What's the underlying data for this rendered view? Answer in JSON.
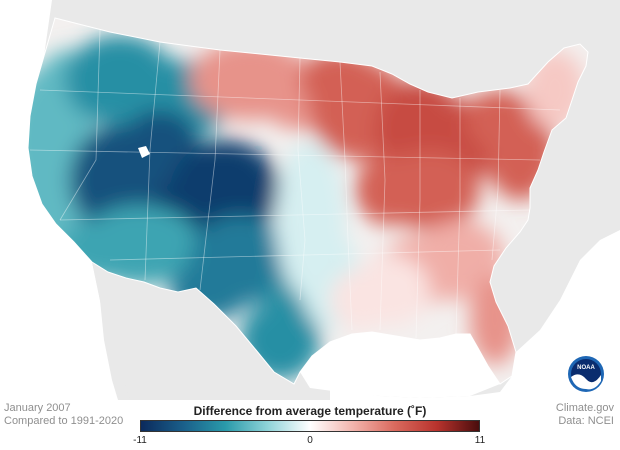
{
  "footer": {
    "period": "January 2007",
    "baseline": "Compared to 1991-2020",
    "credit": "Climate.gov",
    "source": "Data: NCEI"
  },
  "legend": {
    "title": "Difference from average temperature (˚F)",
    "min_label": "-11",
    "mid_label": "0",
    "max_label": "11",
    "min_value": -11,
    "max_value": 11,
    "colors": [
      "#0b2a5c",
      "#1a5f8a",
      "#2a9aaa",
      "#8fd3d8",
      "#ffffff",
      "#f2b5ae",
      "#d96a5e",
      "#b8332d",
      "#4a0d0d"
    ]
  },
  "logo": {
    "text": "NOAA",
    "ring_color": "#1e67b5",
    "sky_color": "#0a2c6e",
    "wave_color": "#ffffff"
  },
  "map": {
    "ocean_color": "#ffffff",
    "land_color": "#e9e9e9",
    "region_anomalies": {
      "pacific_coast": -4,
      "northern_rockies": -6,
      "great_basin": -9,
      "central_rockies": -10,
      "southwest": -5,
      "southern_plains": -7,
      "texas_coast": -6,
      "central_plains": -1,
      "northern_plains": 4,
      "upper_midwest": 6,
      "great_lakes": 7,
      "ohio_valley": 6,
      "northeast": 6,
      "new_england": 2,
      "southeast": 3,
      "deep_south": 1,
      "florida": 4
    }
  }
}
